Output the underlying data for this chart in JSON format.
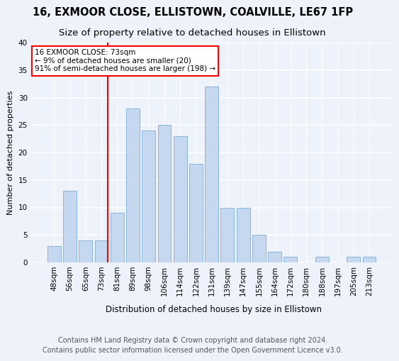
{
  "title": "16, EXMOOR CLOSE, ELLISTOWN, COALVILLE, LE67 1FP",
  "subtitle": "Size of property relative to detached houses in Ellistown",
  "xlabel": "Distribution of detached houses by size in Ellistown",
  "ylabel": "Number of detached properties",
  "categories": [
    "48sqm",
    "56sqm",
    "65sqm",
    "73sqm",
    "81sqm",
    "89sqm",
    "98sqm",
    "106sqm",
    "114sqm",
    "122sqm",
    "131sqm",
    "139sqm",
    "147sqm",
    "155sqm",
    "164sqm",
    "172sqm",
    "180sqm",
    "188sqm",
    "197sqm",
    "205sqm",
    "213sqm"
  ],
  "values": [
    3,
    13,
    4,
    4,
    9,
    28,
    24,
    25,
    23,
    18,
    32,
    10,
    10,
    5,
    2,
    1,
    0,
    1,
    0,
    1,
    1
  ],
  "bar_color": "#c5d8f0",
  "bar_edge_color": "#7badd4",
  "background_color": "#edf2fb",
  "grid_color": "#ffffff",
  "redline_index": 3,
  "redline_label": "16 EXMOOR CLOSE: 73sqm",
  "annotation_line2": "← 9% of detached houses are smaller (20)",
  "annotation_line3": "91% of semi-detached houses are larger (198) →",
  "ylim": [
    0,
    40
  ],
  "yticks": [
    0,
    5,
    10,
    15,
    20,
    25,
    30,
    35,
    40
  ],
  "footer_line1": "Contains HM Land Registry data © Crown copyright and database right 2024.",
  "footer_line2": "Contains public sector information licensed under the Open Government Licence v3.0.",
  "title_fontsize": 10.5,
  "subtitle_fontsize": 9.5,
  "xlabel_fontsize": 8.5,
  "ylabel_fontsize": 8,
  "tick_fontsize": 7.5,
  "annotation_fontsize": 7.5,
  "footer_fontsize": 7
}
